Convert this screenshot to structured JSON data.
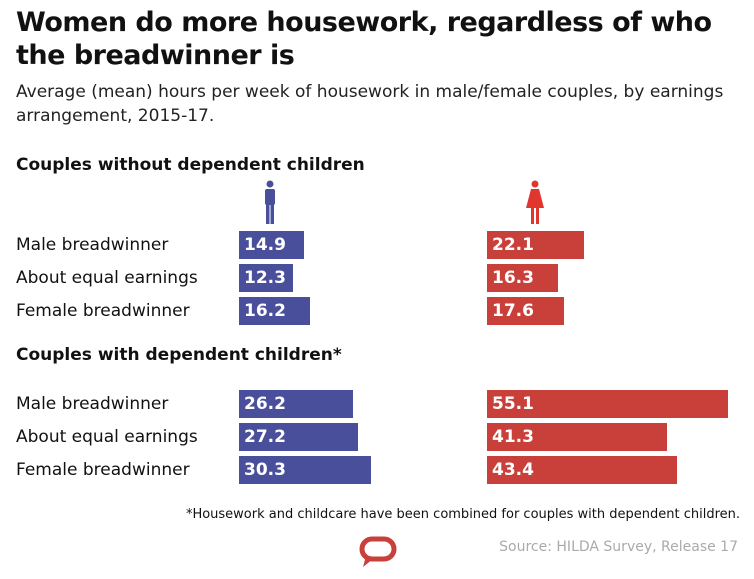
{
  "title": "Women do more housework, regardless of who the breadwinner is",
  "subtitle": "Average (mean) hours per week of housework in male/female couples, by earnings arrangement, 2015-17.",
  "footnote": "*Housework and childcare have been combined for couples with dependent children.",
  "source": "Source: HILDA Survey, Release 17",
  "colors": {
    "men": "#4a4f9c",
    "women": "#c9403a"
  },
  "icons": {
    "men": "man-icon",
    "women": "woman-icon",
    "logo": "speech-bubble-logo-icon"
  },
  "chart_data": {
    "type": "bar",
    "categories": [
      "Male breadwinner",
      "About equal earnings",
      "Female breadwinner"
    ],
    "groups": [
      {
        "title": "Couples without dependent children",
        "series": [
          {
            "values": [
              14.9,
              12.3,
              16.2
            ]
          },
          {
            "values": [
              22.1,
              16.3,
              17.6
            ]
          }
        ]
      },
      {
        "title": "Couples with dependent children*",
        "series": [
          {
            "values": [
              26.2,
              27.2,
              30.3
            ]
          },
          {
            "values": [
              55.1,
              41.3,
              43.4
            ]
          }
        ]
      }
    ]
  }
}
